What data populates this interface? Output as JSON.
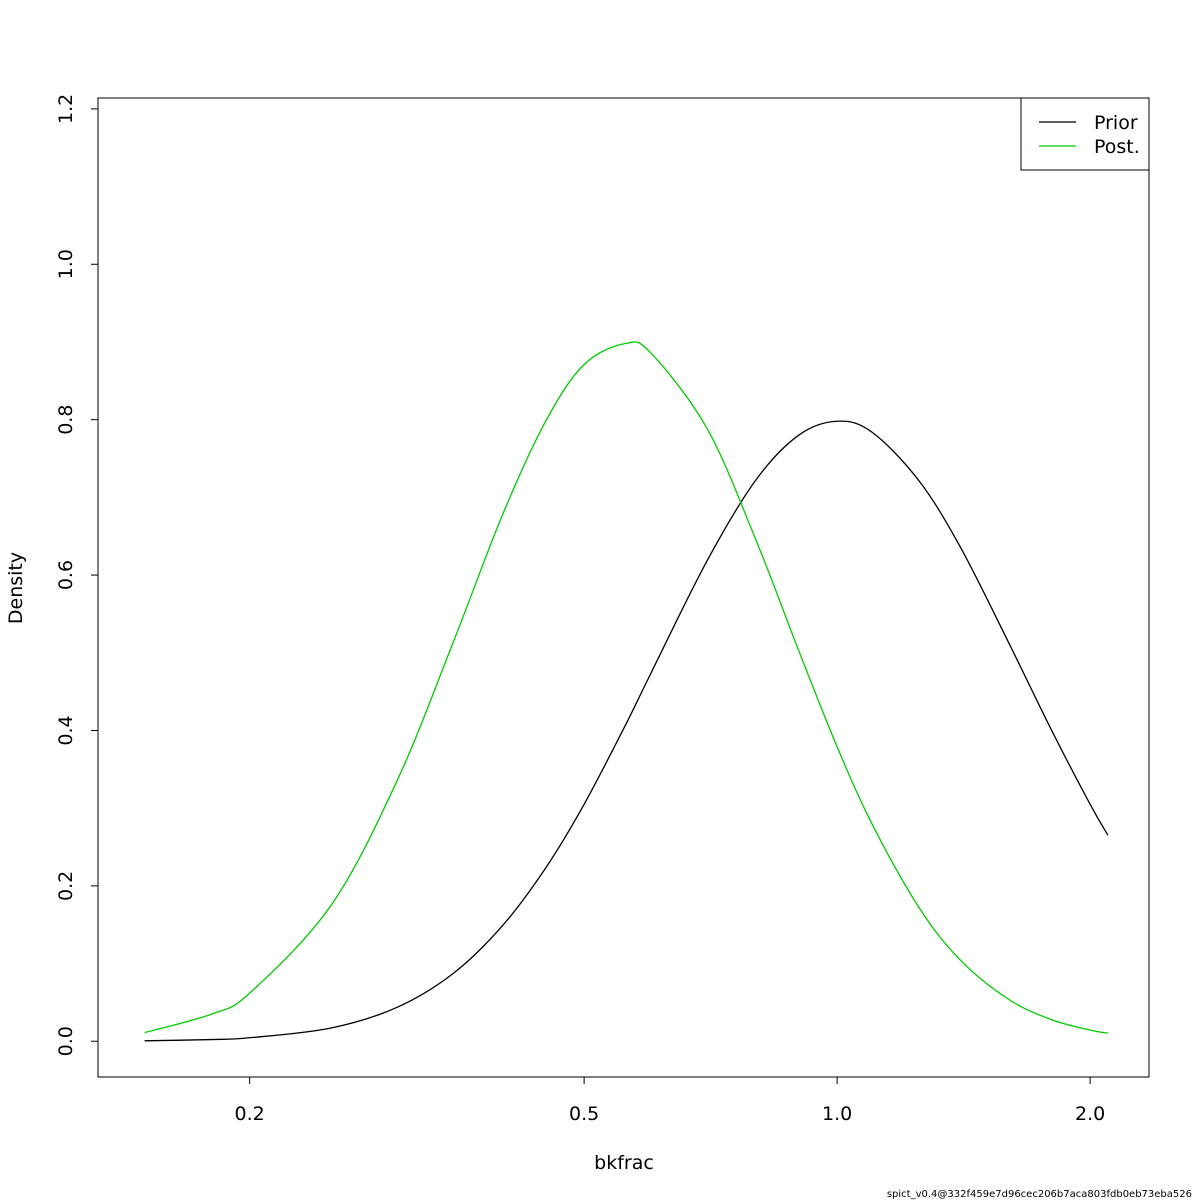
{
  "chart_data": {
    "type": "line",
    "x_label": "bkfrac",
    "y_label": "Density",
    "x_scale": "log",
    "x": [
      0.15,
      0.18,
      0.2,
      0.25,
      0.3,
      0.35,
      0.4,
      0.45,
      0.5,
      0.56,
      0.6,
      0.7,
      0.8,
      0.9,
      1.0,
      1.1,
      1.25,
      1.4,
      1.6,
      1.8,
      2.0,
      2.1
    ],
    "series": [
      {
        "name": "Prior",
        "color": "#000000",
        "values": [
          0.0006,
          0.0022,
          0.0045,
          0.0171,
          0.044,
          0.088,
          0.149,
          0.223,
          0.305,
          0.407,
          0.473,
          0.618,
          0.722,
          0.78,
          0.798,
          0.784,
          0.722,
          0.637,
          0.513,
          0.4,
          0.305,
          0.265
        ]
      },
      {
        "name": "Post.",
        "color": "#00cd00",
        "values": [
          0.0112,
          0.0348,
          0.062,
          0.175,
          0.337,
          0.516,
          0.678,
          0.798,
          0.871,
          0.898,
          0.886,
          0.789,
          0.646,
          0.503,
          0.379,
          0.28,
          0.173,
          0.105,
          0.0539,
          0.0277,
          0.0144,
          0.0104
        ]
      }
    ],
    "xlim": [
      0.132,
      2.35
    ],
    "ylim": [
      -0.046,
      1.214
    ],
    "xticks": [
      0.2,
      0.5,
      {
        "value": 1,
        "label": "1.0"
      },
      {
        "value": 2,
        "label": "2.0"
      }
    ],
    "yticks": [
      {
        "value": 0,
        "label": "0.0"
      },
      0.2,
      0.4,
      0.6,
      0.8,
      {
        "value": 1,
        "label": "1.0"
      },
      1.2
    ],
    "legend": "top-right",
    "footnote": "spict_v0.4@332f459e7d96cec206b7aca803fdb0eb73eba526"
  }
}
